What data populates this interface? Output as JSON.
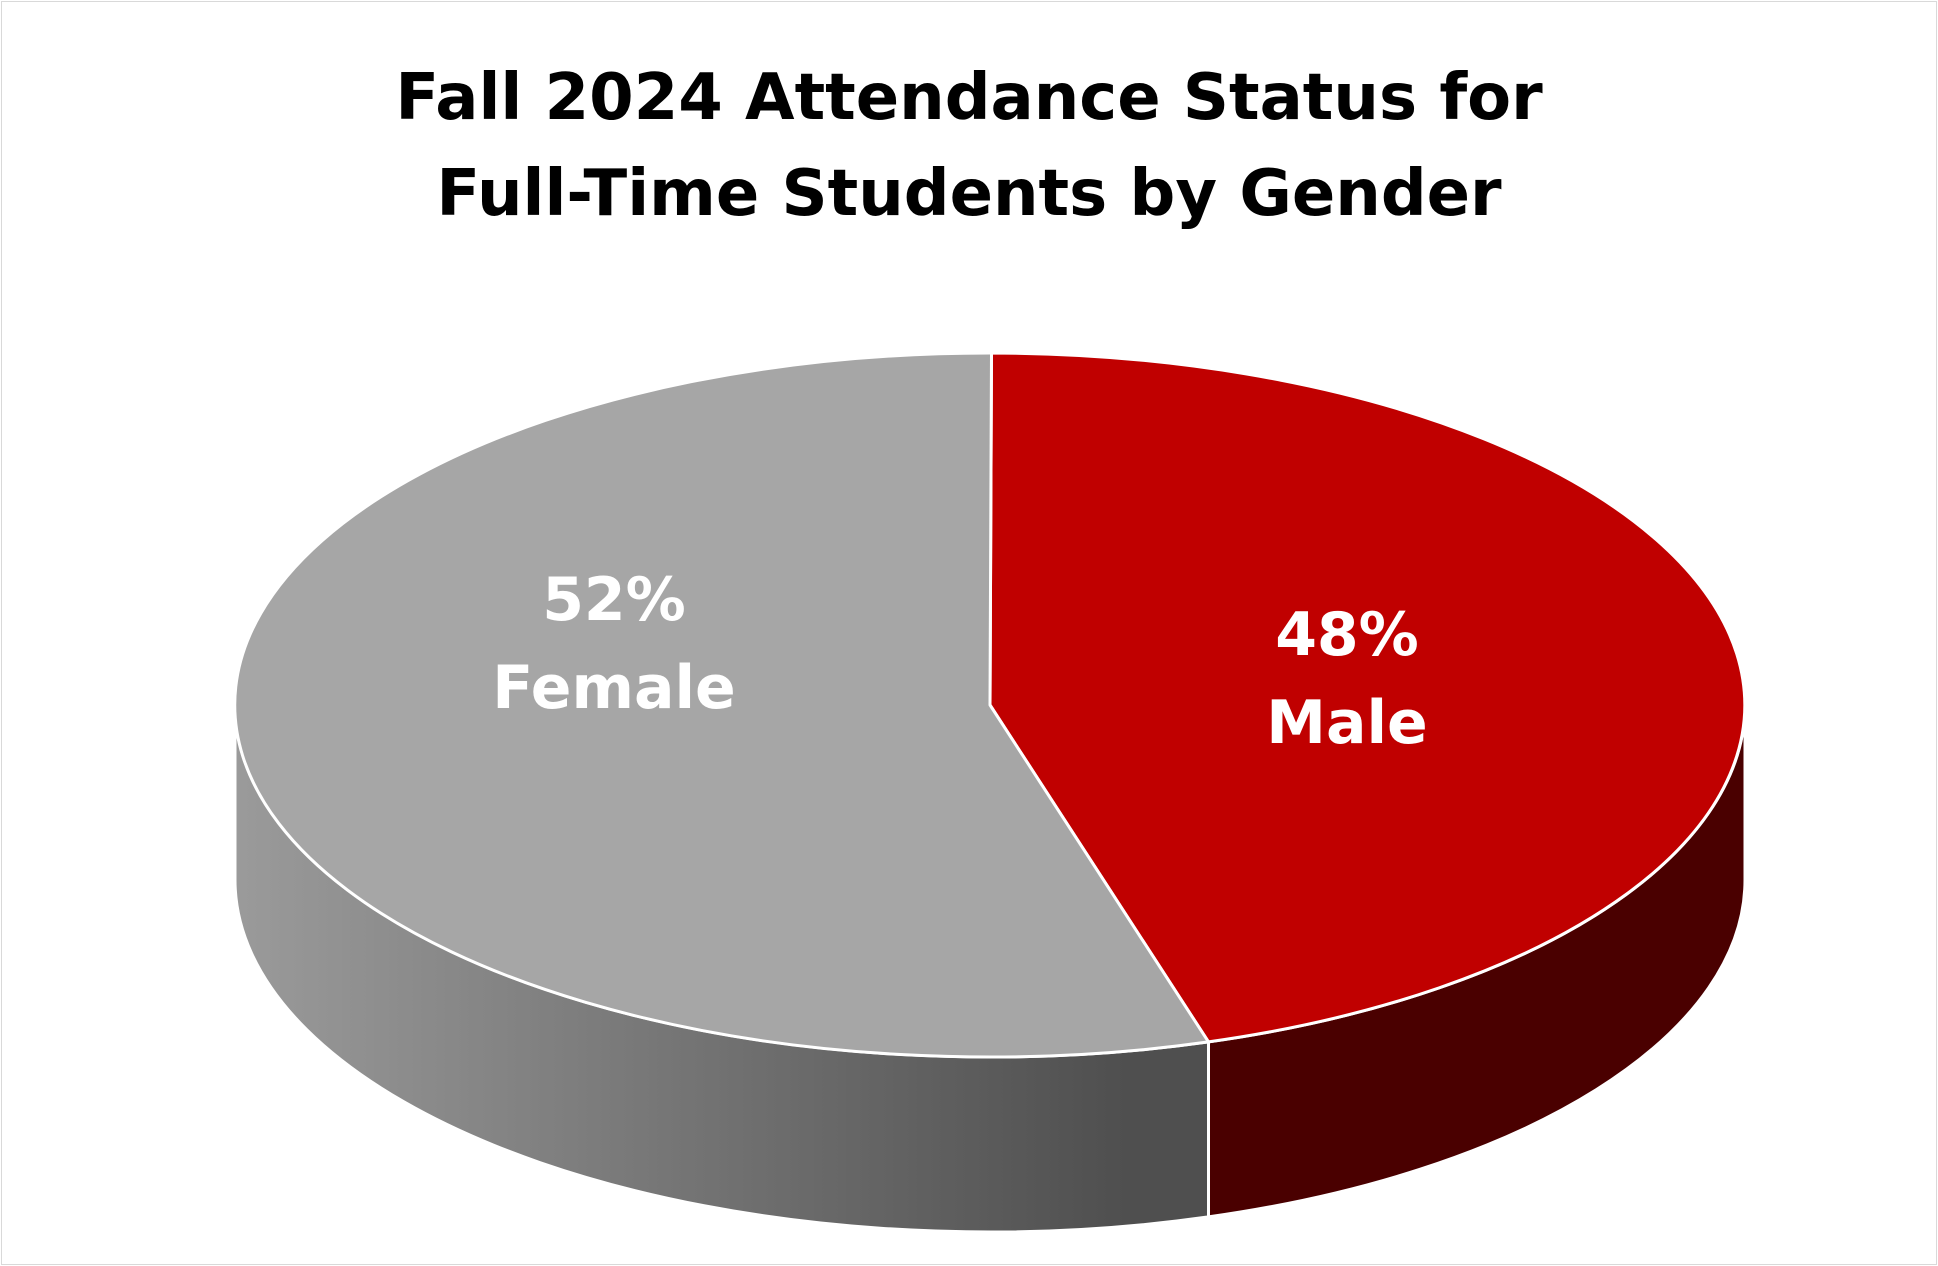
{
  "chart_data": {
    "type": "pie",
    "title_lines": [
      "Fall 2024 Attendance Status for",
      "Full-Time Students by Gender"
    ],
    "slices": [
      {
        "label": "Male",
        "value": 48,
        "display": "48%",
        "color": "#c00000",
        "side_color": "#4a0000"
      },
      {
        "label": "Female",
        "value": 52,
        "display": "52%",
        "color": "#a6a6a6",
        "side_color_light": "#979797",
        "side_color_dark": "#4f4f4f"
      }
    ],
    "style": "3d",
    "legend": "none",
    "data_labels": "inside"
  }
}
